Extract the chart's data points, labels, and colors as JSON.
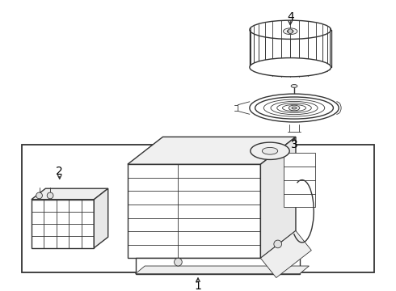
{
  "bg_color": "#ffffff",
  "line_color": "#333333",
  "label_color": "#000000",
  "label_fontsize": 9,
  "fig_width": 4.9,
  "fig_height": 3.6,
  "dpi": 100
}
